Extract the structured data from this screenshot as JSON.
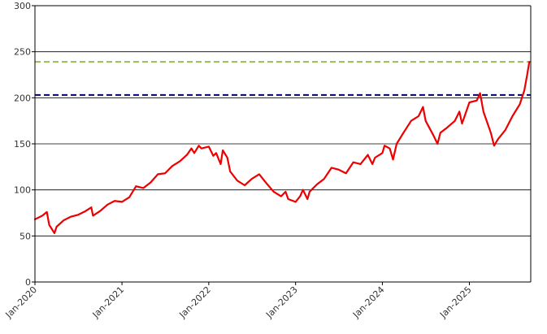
{
  "chart_data": {
    "type": "line",
    "title": "",
    "xlabel": "",
    "ylabel": "",
    "ylim": [
      0,
      300
    ],
    "y_ticks": [
      "0",
      "50",
      "100",
      "150",
      "200",
      "250",
      "300"
    ],
    "x_ticks": [
      "Jan-2020",
      "Jan-2021",
      "Jan-2022",
      "Jan-2023",
      "Jan-2024",
      "Jan-2025"
    ],
    "grid": "horizontal",
    "x_range": [
      "2020-01",
      "2025-09"
    ],
    "reference_lines": [
      {
        "value": 239,
        "color": "#9BBB59",
        "style": "dashed"
      },
      {
        "value": 203,
        "color": "#000066",
        "style": "dashed"
      }
    ],
    "series": [
      {
        "color": "#EE0000",
        "points": [
          [
            "2020-01",
            68
          ],
          [
            "2020-02",
            72
          ],
          [
            "2020-02-20",
            76
          ],
          [
            "2020-03",
            62
          ],
          [
            "2020-03-23",
            53
          ],
          [
            "2020-04",
            60
          ],
          [
            "2020-05",
            67
          ],
          [
            "2020-06",
            71
          ],
          [
            "2020-07",
            73
          ],
          [
            "2020-08",
            77
          ],
          [
            "2020-08-25",
            81
          ],
          [
            "2020-09",
            72
          ],
          [
            "2020-10",
            77
          ],
          [
            "2020-11",
            84
          ],
          [
            "2020-12",
            88
          ],
          [
            "2021-01",
            87
          ],
          [
            "2021-02",
            92
          ],
          [
            "2021-03",
            104
          ],
          [
            "2021-04",
            102
          ],
          [
            "2021-05",
            108
          ],
          [
            "2021-06",
            117
          ],
          [
            "2021-07",
            118
          ],
          [
            "2021-08",
            126
          ],
          [
            "2021-09",
            131
          ],
          [
            "2021-10",
            138
          ],
          [
            "2021-10-20",
            145
          ],
          [
            "2021-11",
            140
          ],
          [
            "2021-11-20",
            148
          ],
          [
            "2021-12",
            145
          ],
          [
            "2022-01",
            147
          ],
          [
            "2022-01-20",
            137
          ],
          [
            "2022-02",
            140
          ],
          [
            "2022-02-20",
            128
          ],
          [
            "2022-03",
            143
          ],
          [
            "2022-03-20",
            135
          ],
          [
            "2022-04",
            120
          ],
          [
            "2022-05",
            110
          ],
          [
            "2022-06",
            105
          ],
          [
            "2022-07",
            112
          ],
          [
            "2022-08",
            117
          ],
          [
            "2022-09",
            107
          ],
          [
            "2022-10",
            98
          ],
          [
            "2022-11",
            93
          ],
          [
            "2022-11-20",
            98
          ],
          [
            "2022-12",
            90
          ],
          [
            "2023-01",
            87
          ],
          [
            "2023-01-20",
            93
          ],
          [
            "2023-02",
            100
          ],
          [
            "2023-02-20",
            90
          ],
          [
            "2023-03",
            98
          ],
          [
            "2023-04",
            106
          ],
          [
            "2023-05",
            112
          ],
          [
            "2023-06",
            124
          ],
          [
            "2023-07",
            122
          ],
          [
            "2023-08",
            118
          ],
          [
            "2023-09",
            130
          ],
          [
            "2023-10",
            128
          ],
          [
            "2023-11",
            138
          ],
          [
            "2023-11-20",
            128
          ],
          [
            "2023-12",
            135
          ],
          [
            "2024-01",
            140
          ],
          [
            "2024-01-10",
            148
          ],
          [
            "2024-02",
            145
          ],
          [
            "2024-02-15",
            133
          ],
          [
            "2024-03",
            150
          ],
          [
            "2024-04",
            163
          ],
          [
            "2024-05",
            175
          ],
          [
            "2024-06",
            180
          ],
          [
            "2024-06-20",
            190
          ],
          [
            "2024-07",
            175
          ],
          [
            "2024-08",
            160
          ],
          [
            "2024-08-20",
            150
          ],
          [
            "2024-09",
            162
          ],
          [
            "2024-10",
            168
          ],
          [
            "2024-11",
            175
          ],
          [
            "2024-11-20",
            185
          ],
          [
            "2024-12",
            172
          ],
          [
            "2025-01",
            195
          ],
          [
            "2025-02",
            197
          ],
          [
            "2025-02-15",
            205
          ],
          [
            "2025-03",
            185
          ],
          [
            "2025-04",
            162
          ],
          [
            "2025-04-15",
            148
          ],
          [
            "2025-05",
            155
          ],
          [
            "2025-06",
            165
          ],
          [
            "2025-07",
            180
          ],
          [
            "2025-08",
            193
          ],
          [
            "2025-08-20",
            208
          ],
          [
            "2025-09",
            225
          ],
          [
            "2025-09-10",
            239
          ]
        ]
      }
    ]
  }
}
